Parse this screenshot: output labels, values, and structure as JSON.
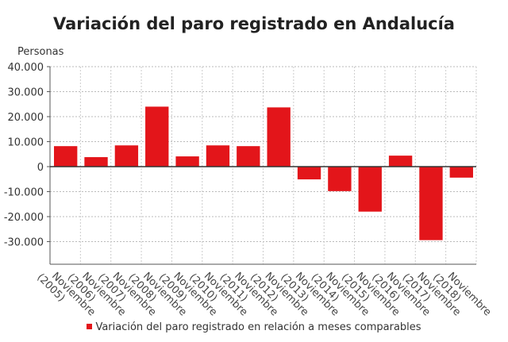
{
  "chart_data": {
    "type": "bar",
    "title": "Variación del paro registrado en Andalucía",
    "ylabel": "Personas",
    "xlabel": "",
    "categories": [
      "Noviembre (2005)",
      "Noviembre (2006)",
      "Noviembre (2007)",
      "Noviembre (2008)",
      "Noviembre (2009)",
      "Noviembre (2010)",
      "Noviembre (2011)",
      "Noviembre (2012)",
      "Noviembre (2013)",
      "Noviembre (2014)",
      "Noviembre (2015)",
      "Noviembre (2016)",
      "Noviembre (2017)",
      "Noviembre (2018)"
    ],
    "series": [
      {
        "name": "Variación del paro registrado en relación a meses comparables",
        "color": "#e3151a",
        "values": [
          8200,
          3800,
          8500,
          24000,
          4100,
          8500,
          8200,
          23700,
          -5100,
          -9800,
          -18000,
          4400,
          -29400,
          -4400
        ]
      }
    ],
    "ylim": [
      -40000,
      40000
    ],
    "yticks": [
      40000,
      30000,
      20000,
      10000,
      0,
      -10000,
      -20000,
      -30000
    ],
    "ytick_labels": [
      "40.000",
      "30.000",
      "20.000",
      "10.000",
      "0",
      "-10.000",
      "-20.000",
      "-30.000"
    ],
    "grid": true,
    "legend": "bottom"
  }
}
